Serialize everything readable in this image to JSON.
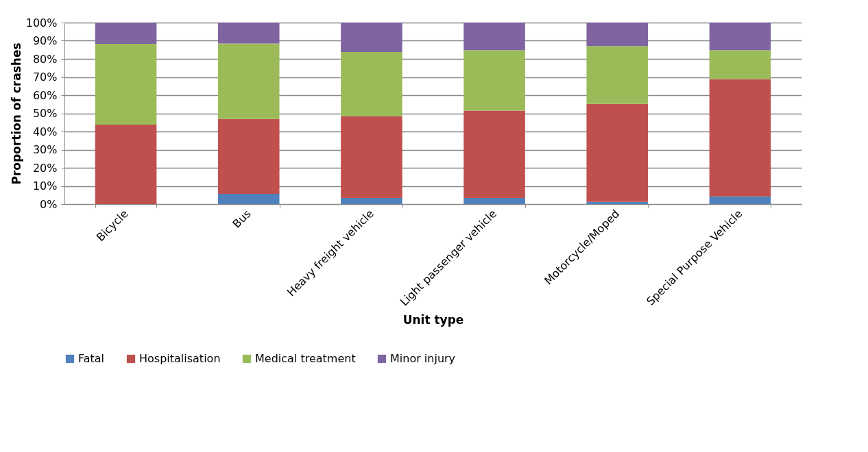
{
  "chart_data": {
    "type": "bar",
    "stacked": true,
    "xlabel": "Unit type",
    "ylabel": "Proportion of crashes",
    "categories": [
      "Bicycle",
      "Bus",
      "Heavy freight vehicle",
      "Light passenger vehicle",
      "Motorcycle/Moped",
      "Special Purpose Vehicle"
    ],
    "series": [
      {
        "name": "Fatal",
        "color": "#4f81bd",
        "values": [
          0,
          5.7,
          3.4,
          3.4,
          1.2,
          4.2
        ]
      },
      {
        "name": "Hospitalisation",
        "color": "#c0504d",
        "values": [
          43.8,
          41.2,
          45.1,
          48.1,
          54.0,
          64.7
        ]
      },
      {
        "name": "Medical treatment",
        "color": "#9bbb59",
        "values": [
          44.5,
          41.6,
          35.3,
          33.3,
          31.9,
          15.9
        ]
      },
      {
        "name": "Minor injury",
        "color": "#8064a2",
        "values": [
          11.5,
          11.5,
          16.2,
          15.2,
          12.9,
          15.2
        ]
      }
    ],
    "ylim": [
      0,
      100
    ],
    "yticks": [
      {
        "value": 0,
        "label": "0%"
      },
      {
        "value": 10,
        "label": "10%"
      },
      {
        "value": 20,
        "label": "20%"
      },
      {
        "value": 30,
        "label": "30%"
      },
      {
        "value": 40,
        "label": "40%"
      },
      {
        "value": 50,
        "label": "50%"
      },
      {
        "value": 60,
        "label": "60%"
      },
      {
        "value": 70,
        "label": "70%"
      },
      {
        "value": 80,
        "label": "80%"
      },
      {
        "value": 90,
        "label": "90%"
      },
      {
        "value": 100,
        "label": "100%"
      }
    ],
    "grid": "y",
    "legend": "bottom"
  }
}
